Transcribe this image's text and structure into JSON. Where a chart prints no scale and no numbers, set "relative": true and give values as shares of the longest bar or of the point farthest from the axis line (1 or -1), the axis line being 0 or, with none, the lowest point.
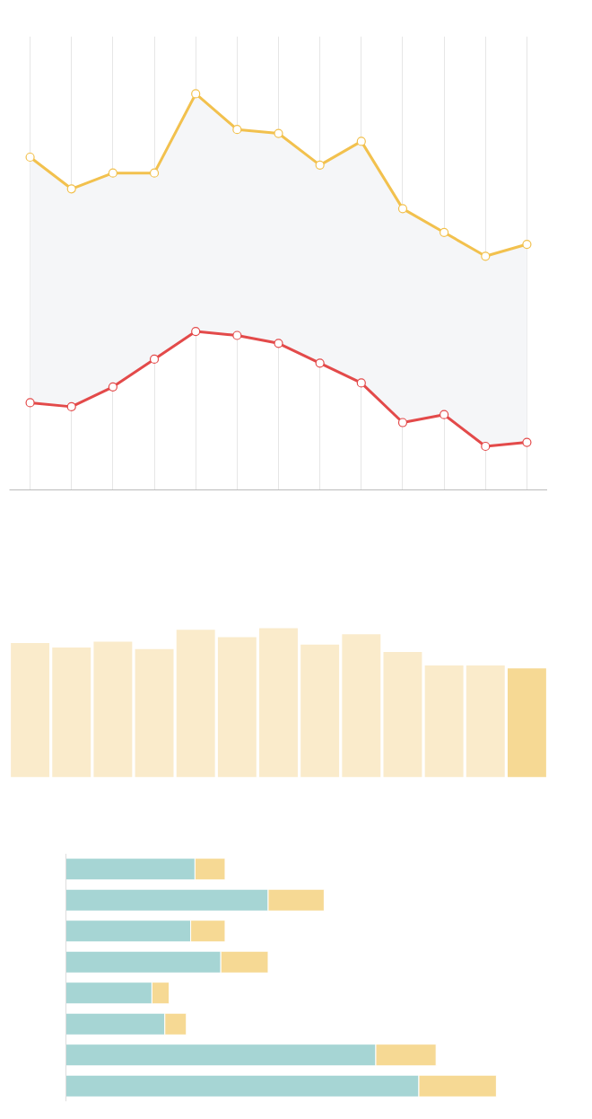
{
  "chart_data": [
    {
      "type": "line",
      "relative": true,
      "categories": [
        null,
        null,
        null,
        null,
        null,
        null,
        null,
        null,
        null,
        null,
        null,
        null,
        null
      ],
      "grid": "x",
      "marker": "circle",
      "line_style": "solid",
      "series": [
        {
          "color": "#f2c14e",
          "values": [
            0.84,
            0.76,
            0.8,
            0.8,
            1.0,
            0.91,
            0.9,
            0.82,
            0.88,
            0.71,
            0.65,
            0.59,
            0.62
          ],
          "lower": [
            0.22,
            0.21,
            0.26,
            0.33,
            0.4,
            0.39,
            0.37,
            0.32,
            0.27,
            0.17,
            0.19,
            0.11,
            0.12
          ],
          "upper": [
            0.84,
            0.76,
            0.8,
            0.8,
            1.0,
            0.91,
            0.9,
            0.82,
            0.88,
            0.71,
            0.65,
            0.59,
            0.62
          ]
        },
        {
          "color": "#e34a4a",
          "values": [
            0.22,
            0.21,
            0.26,
            0.33,
            0.4,
            0.39,
            0.37,
            0.32,
            0.27,
            0.17,
            0.19,
            0.11,
            0.12
          ]
        }
      ]
    },
    {
      "type": "bar",
      "relative": true,
      "categories": [
        null,
        null,
        null,
        null,
        null,
        null,
        null,
        null,
        null,
        null,
        null,
        null,
        null
      ],
      "values": [
        0.9,
        0.87,
        0.91,
        0.86,
        0.99,
        0.94,
        1.0,
        0.89,
        0.96,
        0.84,
        0.75,
        0.75,
        0.73
      ],
      "colors": [
        "#faebcb",
        "#faebcb",
        "#faebcb",
        "#faebcb",
        "#faebcb",
        "#faebcb",
        "#faebcb",
        "#faebcb",
        "#faebcb",
        "#faebcb",
        "#faebcb",
        "#faebcb",
        "#f6d994"
      ]
    },
    {
      "type": "bar",
      "relative": true,
      "orientation": "horizontal",
      "stacked": true,
      "categories": [
        null,
        null,
        null,
        null,
        null,
        null,
        null,
        null
      ],
      "series": [
        {
          "color": "#a6d5d4",
          "values": [
            0.3,
            0.47,
            0.29,
            0.36,
            0.2,
            0.23,
            0.72,
            0.82
          ]
        },
        {
          "color": "#f6d994",
          "values": [
            0.07,
            0.13,
            0.08,
            0.11,
            0.04,
            0.05,
            0.14,
            0.18
          ]
        }
      ]
    }
  ]
}
